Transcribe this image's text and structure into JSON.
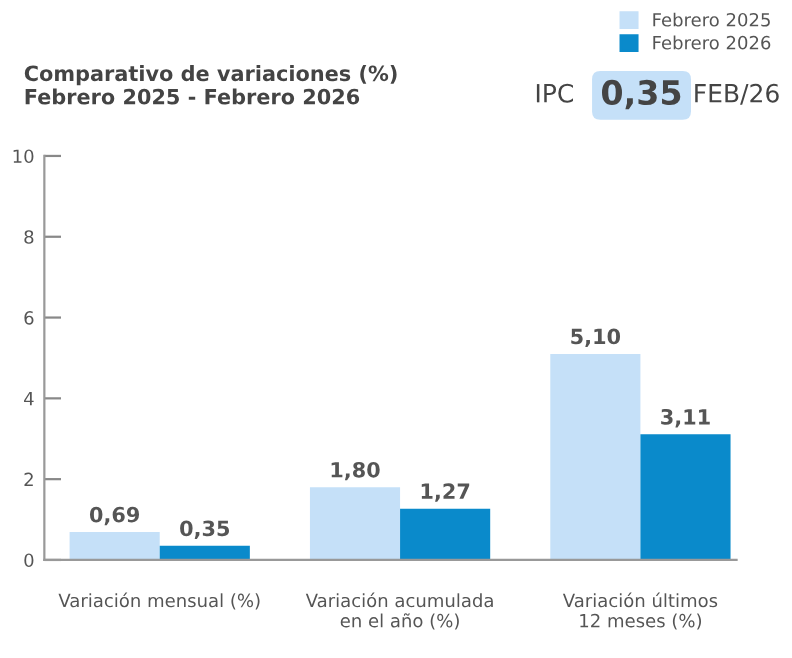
{
  "chart_data": {
    "type": "bar",
    "title": "Comparativo de variaciones (%)\nFebrero 2025 - Febrero 2026",
    "categories": [
      "Variación mensual (%)",
      "Variación acumulada\nen el año (%)",
      "Variación últimos\n12 meses (%)"
    ],
    "series": [
      {
        "name": "Febrero 2025",
        "color": "#c5e0f8",
        "values": [
          0.69,
          1.8,
          5.1
        ],
        "value_labels": [
          "0,69",
          "1,80",
          "5,10"
        ]
      },
      {
        "name": "Febrero 2026",
        "color": "#0a8acb",
        "values": [
          0.35,
          1.27,
          3.11
        ],
        "value_labels": [
          "0,35",
          "1,27",
          "3,11"
        ]
      }
    ],
    "ylim": [
      0,
      10
    ],
    "yticks": [
      0,
      2,
      4,
      6,
      8,
      10
    ],
    "grid": false,
    "legend": "top right",
    "annotations": [
      "IPC",
      "0,35",
      "FEB/26"
    ]
  }
}
